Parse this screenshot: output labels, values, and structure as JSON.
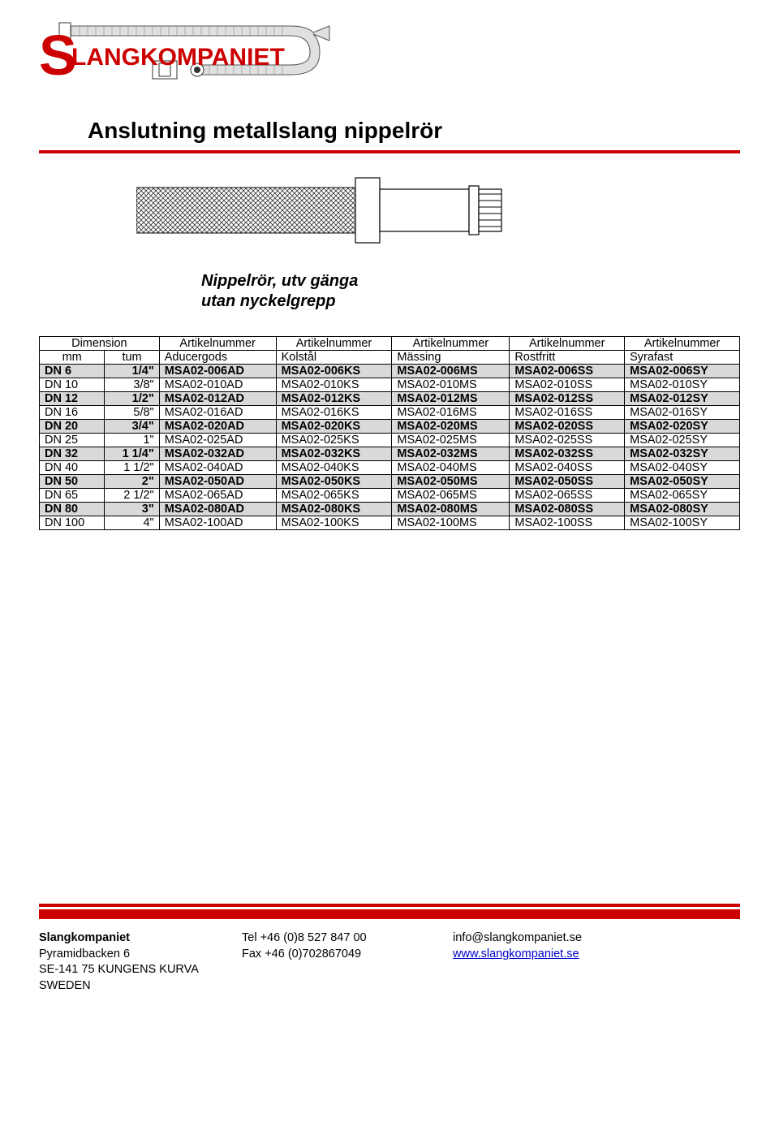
{
  "logo_text": "SLANGKOMPANIET",
  "title": "Anslutning metallslang nippelrör",
  "subtitle_line1": "Nippelrör, utv gänga",
  "subtitle_line2": "utan nyckelgrepp",
  "accent_color": "#cc0000",
  "shaded_bg": "#d9d9d9",
  "header": {
    "dim": "Dimension",
    "an": "Artikelnummer",
    "mm": "mm",
    "tum": "tum",
    "c1": "Aducergods",
    "c2": "Kolstål",
    "c3": "Mässing",
    "c4": "Rostfritt",
    "c5": "Syrafast"
  },
  "rows": [
    {
      "shaded": true,
      "mm": "DN 6",
      "tum": "1/4\"",
      "a": "MSA02-006AD",
      "k": "MSA02-006KS",
      "m": "MSA02-006MS",
      "r": "MSA02-006SS",
      "s": "MSA02-006SY"
    },
    {
      "shaded": false,
      "mm": "DN 10",
      "tum": "3/8\"",
      "a": "MSA02-010AD",
      "k": "MSA02-010KS",
      "m": "MSA02-010MS",
      "r": "MSA02-010SS",
      "s": "MSA02-010SY"
    },
    {
      "shaded": true,
      "mm": "DN 12",
      "tum": "1/2\"",
      "a": "MSA02-012AD",
      "k": "MSA02-012KS",
      "m": "MSA02-012MS",
      "r": "MSA02-012SS",
      "s": "MSA02-012SY"
    },
    {
      "shaded": false,
      "mm": "DN 16",
      "tum": "5/8\"",
      "a": "MSA02-016AD",
      "k": "MSA02-016KS",
      "m": "MSA02-016MS",
      "r": "MSA02-016SS",
      "s": "MSA02-016SY"
    },
    {
      "shaded": true,
      "mm": "DN 20",
      "tum": "3/4\"",
      "a": "MSA02-020AD",
      "k": "MSA02-020KS",
      "m": "MSA02-020MS",
      "r": "MSA02-020SS",
      "s": "MSA02-020SY"
    },
    {
      "shaded": false,
      "mm": "DN 25",
      "tum": "1\"",
      "a": "MSA02-025AD",
      "k": "MSA02-025KS",
      "m": "MSA02-025MS",
      "r": "MSA02-025SS",
      "s": "MSA02-025SY"
    },
    {
      "shaded": true,
      "mm": "DN 32",
      "tum": "1 1/4\"",
      "a": "MSA02-032AD",
      "k": "MSA02-032KS",
      "m": "MSA02-032MS",
      "r": "MSA02-032SS",
      "s": "MSA02-032SY"
    },
    {
      "shaded": false,
      "mm": "DN 40",
      "tum": "1 1/2\"",
      "a": "MSA02-040AD",
      "k": "MSA02-040KS",
      "m": "MSA02-040MS",
      "r": "MSA02-040SS",
      "s": "MSA02-040SY"
    },
    {
      "shaded": true,
      "mm": "DN 50",
      "tum": "2\"",
      "a": "MSA02-050AD",
      "k": "MSA02-050KS",
      "m": "MSA02-050MS",
      "r": "MSA02-050SS",
      "s": "MSA02-050SY"
    },
    {
      "shaded": false,
      "mm": "DN 65",
      "tum": "2 1/2\"",
      "a": "MSA02-065AD",
      "k": "MSA02-065KS",
      "m": "MSA02-065MS",
      "r": "MSA02-065SS",
      "s": "MSA02-065SY"
    },
    {
      "shaded": true,
      "mm": "DN 80",
      "tum": "3\"",
      "a": "MSA02-080AD",
      "k": "MSA02-080KS",
      "m": "MSA02-080MS",
      "r": "MSA02-080SS",
      "s": "MSA02-080SY"
    },
    {
      "shaded": false,
      "mm": "DN 100",
      "tum": "4\"",
      "a": "MSA02-100AD",
      "k": "MSA02-100KS",
      "m": "MSA02-100MS",
      "r": "MSA02-100SS",
      "s": "MSA02-100SY"
    }
  ],
  "footer": {
    "company": "Slangkompaniet",
    "addr1": "Pyramidbacken 6",
    "addr2": "SE-141 75 KUNGENS KURVA",
    "addr3": "SWEDEN",
    "tel": "Tel +46 (0)8 527 847 00",
    "fax": "Fax +46 (0)702867049",
    "email": "info@slangkompaniet.se",
    "web": "www.slangkompaniet.se"
  }
}
